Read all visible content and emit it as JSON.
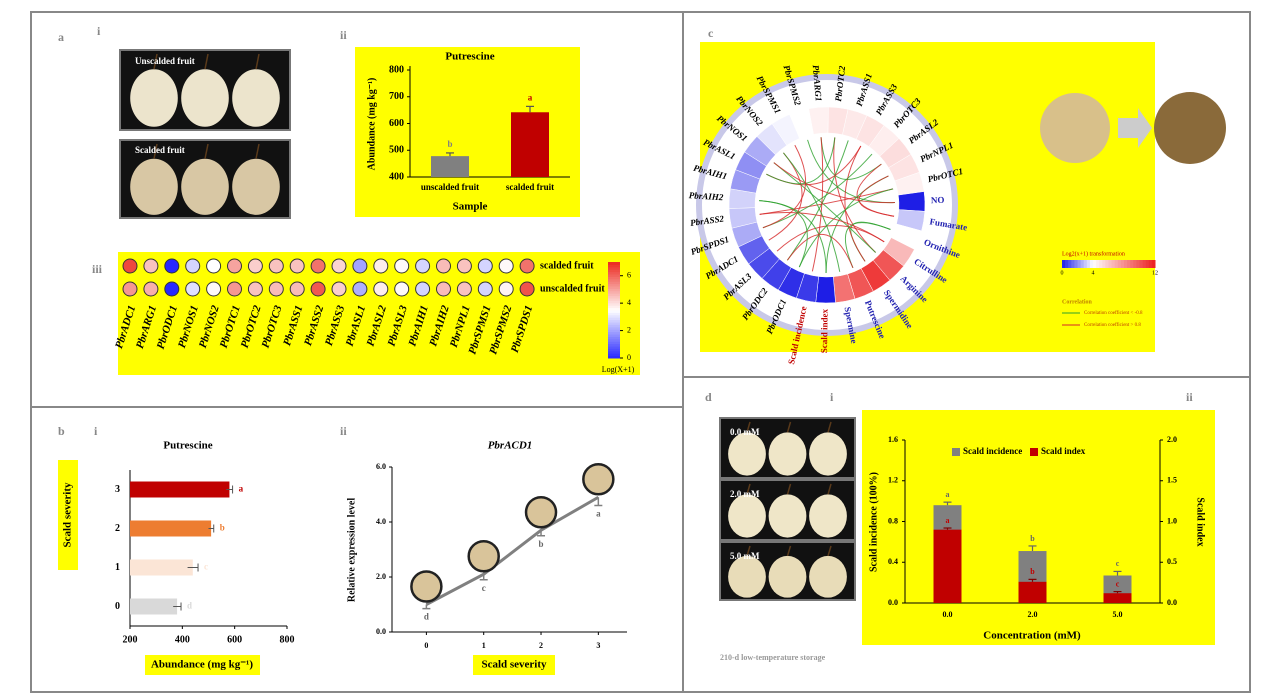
{
  "labels": {
    "a": "a",
    "a_i": "i",
    "a_ii": "ii",
    "a_iii": "iii",
    "b": "b",
    "b_i": "i",
    "b_ii": "ii",
    "c": "c",
    "d": "d",
    "d_i": "i",
    "d_ii": "ii"
  },
  "photos": {
    "unscalded": "Unscalded fruit",
    "scalded": "Scalded fruit",
    "doses": [
      "0.0 mM",
      "2.0 mM",
      "5.0 mM"
    ],
    "storage": "210-d low-temperature storage"
  },
  "chart_data": [
    {
      "type": "bar",
      "title": "Putrescine",
      "categories": [
        "unscalded fruit",
        "scalded fruit"
      ],
      "values": [
        478,
        642
      ],
      "errors": [
        12,
        22
      ],
      "letters": [
        "b",
        "a"
      ],
      "colors": [
        "#808080",
        "#c00000"
      ],
      "ylim": [
        400,
        800
      ],
      "yticks": [
        400,
        500,
        600,
        700,
        800
      ],
      "y_label": "Abundance (mg kg⁻¹)",
      "x_label": "Sample"
    },
    {
      "type": "heatmap",
      "rows": [
        "scalded fruit",
        "unscalded fruit"
      ],
      "columns": [
        "PbrADC1",
        "PbrARG1",
        "PbrODC1",
        "PbrNOS1",
        "PbrNOS2",
        "PbrOTC1",
        "PbrOTC2",
        "PbrOTC3",
        "PbrASS1",
        "PbrASS2",
        "PbrASS3",
        "PbrASL1",
        "PbrASL2",
        "PbrASL3",
        "PbrAIH1",
        "PbrAIH2",
        "PbrNPL1",
        "PbrSPMS1",
        "PbrSPMS2",
        "PbrSPDS1"
      ],
      "values": [
        [
          6.5,
          4.5,
          0,
          2.8,
          3.5,
          5.0,
          4.3,
          4.5,
          4.5,
          5.8,
          4.2,
          2.0,
          3.8,
          3.6,
          2.8,
          4.6,
          4.5,
          2.8,
          3.6,
          5.8
        ],
        [
          5.2,
          4.8,
          0,
          3.0,
          3.6,
          5.2,
          4.5,
          4.6,
          4.6,
          6.2,
          4.3,
          2.2,
          3.8,
          3.6,
          2.8,
          4.6,
          4.5,
          2.8,
          3.7,
          6.3
        ]
      ],
      "zlim": [
        0,
        7
      ],
      "zticks": [
        0,
        2,
        4,
        6
      ],
      "colorbar_label": "Log(X+1)"
    },
    {
      "type": "hbar",
      "title": "Putrescine",
      "categories": [
        "0",
        "1",
        "2",
        "3"
      ],
      "values": [
        380,
        440,
        510,
        580
      ],
      "errors": [
        15,
        20,
        10,
        12
      ],
      "letters": [
        "d",
        "c",
        "b",
        "a"
      ],
      "colors": [
        "#d9d9d9",
        "#fbe5d6",
        "#ed7d31",
        "#c00000"
      ],
      "xlim": [
        200,
        800
      ],
      "xticks": [
        200,
        400,
        600,
        800
      ],
      "x_label": "Abundance (mg kg⁻¹)",
      "y_label": "Scald severity"
    },
    {
      "type": "line",
      "title": "PbrACD1",
      "x": [
        0,
        1,
        2,
        3
      ],
      "values": [
        1.0,
        2.1,
        3.7,
        4.9
      ],
      "errors": [
        0.15,
        0.2,
        0.2,
        0.3
      ],
      "letters": [
        "d",
        "c",
        "b",
        "a"
      ],
      "color": "#808080",
      "xlim": [
        -0.6,
        3.5
      ],
      "xticks": [
        0,
        1,
        2,
        3
      ],
      "ylim": [
        0,
        6
      ],
      "yticks": [
        {
          "value": 0,
          "label": "0.0"
        },
        {
          "value": 2,
          "label": "2.0"
        },
        {
          "value": 4,
          "label": "4.0"
        },
        {
          "value": 6,
          "label": "6.0"
        }
      ],
      "x_label": "Scald severity",
      "y_label": "Relative expression level"
    },
    {
      "type": "circos",
      "categories": [
        "PbrARG1",
        "PbrOTC2",
        "PbrASS1",
        "PbrASS3",
        "PbrOTC3",
        "PbrASL2",
        "PbrNPL1",
        "PbrOTC1",
        "NO",
        "Fumarate",
        "Ornithine",
        "Citrulline",
        "Arginine",
        "Spermidine",
        "Putrescine",
        "Spermine",
        "Scald index",
        "Scald incidence",
        "PbrODC1",
        "PbrODC2",
        "PbrASL3",
        "PbrADC1",
        "PbrSPDS1",
        "PbrASS2",
        "PbrAIH2",
        "PbrAIH1",
        "PbrASL1",
        "PbrNOS1",
        "PbrNOS2",
        "PbrSPMS1",
        "PbrSPMS2"
      ],
      "values": [
        4.5,
        5,
        4.8,
        5,
        4.6,
        5.2,
        5,
        4.5,
        0,
        3,
        4,
        6.5,
        10,
        11,
        10,
        9,
        0,
        0.5,
        0.3,
        0.6,
        0.8,
        1.2,
        2.5,
        3,
        3.2,
        2.2,
        2,
        2.5,
        3.5,
        3.8,
        4
      ],
      "label_colors": [
        "#000",
        "#000",
        "#000",
        "#000",
        "#000",
        "#000",
        "#000",
        "#000",
        "#2020b0",
        "#2020b0",
        "#2020b0",
        "#2020b0",
        "#2020b0",
        "#2020b0",
        "#2020b0",
        "#2020b0",
        "#c00000",
        "#c00000",
        "#000",
        "#000",
        "#000",
        "#000",
        "#000",
        "#000",
        "#000",
        "#000",
        "#000",
        "#000",
        "#000",
        "#000",
        "#000"
      ],
      "colorbar_label": "Log2(x+1) transformation",
      "zticks": [
        0,
        4,
        12
      ],
      "legend_title": "Correlation",
      "links": [
        {
          "name": "Correlation coefficient < -0.8",
          "color": "#2ca02c"
        },
        {
          "name": "Correlation coefficient > 0.8",
          "color": "#d62728"
        }
      ]
    },
    {
      "type": "dualbar",
      "categories": [
        "0.0",
        "2.0",
        "5.0"
      ],
      "series": [
        {
          "name": "Scald incidence",
          "color": "#808080",
          "values": [
            0.96,
            0.51,
            0.27
          ],
          "errors": [
            0.03,
            0.05,
            0.04
          ],
          "letters": [
            "a",
            "b",
            "c"
          ]
        },
        {
          "name": "Scald index",
          "color": "#c00000",
          "axis": "y2",
          "values": [
            0.9,
            0.26,
            0.12
          ],
          "errors": [
            0.02,
            0.03,
            0.02
          ],
          "letters": [
            "a",
            "b",
            "c"
          ]
        }
      ],
      "ylim": [
        0,
        1.6
      ],
      "yticks": [
        {
          "value": 0,
          "label": "0.0"
        },
        {
          "value": 0.4,
          "label": "0.4"
        },
        {
          "value": 0.8,
          "label": "0.8"
        },
        {
          "value": 1.2,
          "label": "1.2"
        },
        {
          "value": 1.6,
          "label": "1.6"
        }
      ],
      "y2lim": [
        0,
        2
      ],
      "y2ticks": [
        {
          "value": 0,
          "label": "0.0"
        },
        {
          "value": 0.5,
          "label": "0.5"
        },
        {
          "value": 1,
          "label": "1.0"
        },
        {
          "value": 1.5,
          "label": "1.5"
        },
        {
          "value": 2,
          "label": "2.0"
        }
      ],
      "x_label": "Concentration (mM)",
      "y_label": "Scald incidence (100%)",
      "y2_label": "Scald index",
      "legend": "top"
    }
  ]
}
